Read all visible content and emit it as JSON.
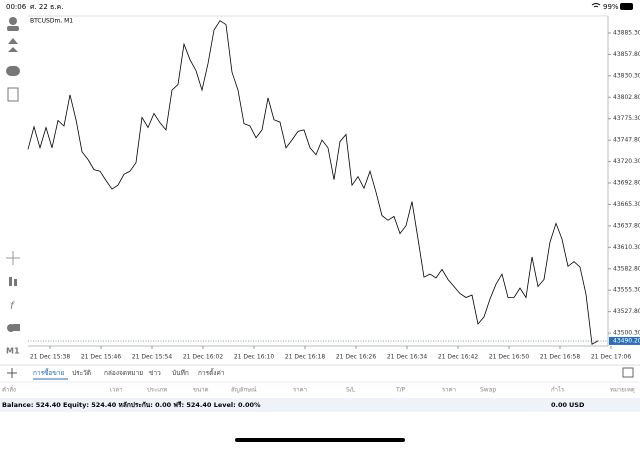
{
  "status_bar": {
    "time": "00:06",
    "date": "ศ. 22 ธ.ค.",
    "battery": "99%"
  },
  "toolbar": {
    "timeframe": "M1"
  },
  "chart": {
    "type": "line",
    "symbol": "BTCUSDm, M1",
    "color": "#000000",
    "x_labels": [
      "21 Dec 15:38",
      "21 Dec 15:46",
      "21 Dec 15:54",
      "21 Dec 16:02",
      "21 Dec 16:10",
      "21 Dec 16:18",
      "21 Dec 16:26",
      "21 Dec 16:34",
      "21 Dec 16:42",
      "21 Dec 16:50",
      "21 Dec 16:58",
      "21 Dec 17:06"
    ],
    "values": [
      43736,
      43765,
      43738,
      43764,
      43738,
      43773,
      43766,
      43806,
      43774,
      43733,
      43723,
      43710,
      43708,
      43696,
      43685,
      43690,
      43704,
      43708,
      43719,
      43777,
      43764,
      43782,
      43770,
      43761,
      43812,
      43819,
      43871,
      43851,
      43837,
      43812,
      43846,
      43889,
      43901,
      43896,
      43835,
      43812,
      43769,
      43766,
      43751,
      43761,
      43802,
      43774,
      43771,
      43738,
      43748,
      43759,
      43761,
      43738,
      43729,
      43748,
      43738,
      43697,
      43746,
      43755,
      43690,
      43701,
      43686,
      43708,
      43681,
      43651,
      43645,
      43650,
      43628,
      43638,
      43669,
      43621,
      43572,
      43576,
      43571,
      43582,
      43569,
      43560,
      43551,
      43546,
      43549,
      43512,
      43521,
      43544,
      43563,
      43576,
      43546,
      43546,
      43558,
      43546,
      43598,
      43560,
      43569,
      43617,
      43641,
      43621,
      43586,
      43592,
      43585,
      43550,
      43486,
      43490.2
    ],
    "last_price_label": "43490.20",
    "ylim": [
      43485,
      43904.5
    ],
    "yticks": [
      {
        "value": 43885.3,
        "label": "43885.30"
      },
      {
        "value": 43857.8,
        "label": "43857.80"
      },
      {
        "value": 43830.3,
        "label": "43830.30"
      },
      {
        "value": 43802.8,
        "label": "43802.80"
      },
      {
        "value": 43775.3,
        "label": "43775.30"
      },
      {
        "value": 43747.8,
        "label": "43747.80"
      },
      {
        "value": 43720.3,
        "label": "43720.30"
      },
      {
        "value": 43692.8,
        "label": "43692.80"
      },
      {
        "value": 43665.3,
        "label": "43665.30"
      },
      {
        "value": 43637.8,
        "label": "43637.80"
      },
      {
        "value": 43610.3,
        "label": "43610.30"
      },
      {
        "value": 43582.8,
        "label": "43582.80"
      },
      {
        "value": 43555.3,
        "label": "43555.30"
      },
      {
        "value": 43527.8,
        "label": "43527.80"
      },
      {
        "value": 43500.3,
        "label": "43500.30"
      }
    ]
  },
  "tabs": [
    "การซื้อขาย",
    "ประวัติ",
    "กล่องจดหมาย",
    "ข่าว",
    "บันทึก",
    "การตั้งค่า"
  ],
  "columns": [
    "คำสั่ง",
    "เวลา",
    "ประเภท",
    "ขนาด",
    "สัญลักษณ์",
    "ราคา",
    "S/L",
    "T/P",
    "ราคา",
    "Swap",
    "กำไร",
    "หมายเหตุ"
  ],
  "balance": {
    "summary": "Balance: 524.40 Equity: 524.40 หลักประกัน: 0.00 ฟรี: 524.40 Level: 0.00%",
    "profit": "0.00",
    "currency": "USD"
  }
}
